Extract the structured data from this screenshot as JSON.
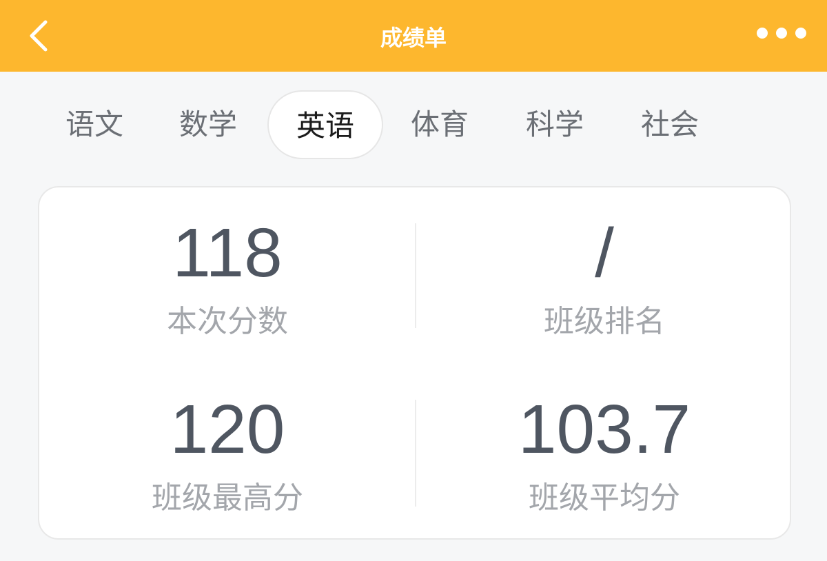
{
  "header": {
    "title": "成绩单",
    "back_icon": "chevron-left-icon",
    "more_icon": "more-horizontal-icon"
  },
  "tabs": [
    {
      "label": "语文"
    },
    {
      "label": "数学"
    },
    {
      "label": "英语",
      "active": true
    },
    {
      "label": "体育"
    },
    {
      "label": "科学"
    },
    {
      "label": "社会"
    }
  ],
  "stats": [
    {
      "value": "118",
      "label": "本次分数"
    },
    {
      "value": "/",
      "label": "班级排名"
    },
    {
      "value": "120",
      "label": "班级最高分"
    },
    {
      "value": "103.7",
      "label": "班级平均分"
    }
  ],
  "colors": {
    "accent": "#fdb72e",
    "value": "#4f5661",
    "label": "#a3a6ab"
  }
}
